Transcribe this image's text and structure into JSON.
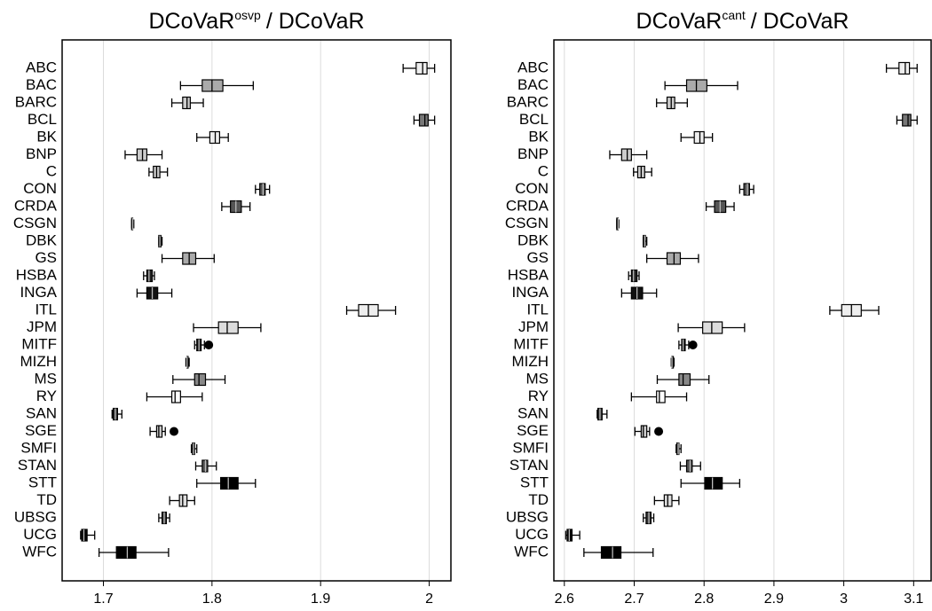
{
  "chart_data": [
    {
      "type": "boxplot",
      "title": "DCoVaR",
      "title_sup": "osvp",
      "title_suffix": "/ DCoVaR",
      "categories": [
        "ABC",
        "BAC",
        "BARC",
        "BCL",
        "BK",
        "BNP",
        "C",
        "CON",
        "CRDA",
        "CSGN",
        "DBK",
        "GS",
        "HSBA",
        "INGA",
        "ITL",
        "JPM",
        "MITF",
        "MIZH",
        "MS",
        "RY",
        "SAN",
        "SGE",
        "SMFI",
        "STAN",
        "STT",
        "TD",
        "UBSG",
        "UCG",
        "WFC"
      ],
      "values": [
        [
          1.976,
          1.988,
          1.994,
          1.998,
          2.005
        ],
        [
          1.771,
          1.791,
          1.8,
          1.81,
          1.838
        ],
        [
          1.763,
          1.773,
          1.777,
          1.78,
          1.792
        ],
        [
          1.986,
          1.991,
          1.996,
          1.999,
          2.005
        ],
        [
          1.786,
          1.798,
          1.803,
          1.807,
          1.815
        ],
        [
          1.72,
          1.731,
          1.736,
          1.74,
          1.754
        ],
        [
          1.742,
          1.746,
          1.749,
          1.752,
          1.759
        ],
        [
          1.84,
          1.844,
          1.847,
          1.849,
          1.853
        ],
        [
          1.809,
          1.817,
          1.822,
          1.827,
          1.835
        ],
        [
          1.726,
          1.726,
          1.727,
          1.727,
          1.728
        ],
        [
          1.751,
          1.751,
          1.752,
          1.753,
          1.754
        ],
        [
          1.754,
          1.773,
          1.779,
          1.785,
          1.802
        ],
        [
          1.737,
          1.74,
          1.742,
          1.745,
          1.747
        ],
        [
          1.731,
          1.74,
          1.745,
          1.75,
          1.763
        ],
        [
          1.924,
          1.935,
          1.944,
          1.953,
          1.969
        ],
        [
          1.783,
          1.806,
          1.814,
          1.824,
          1.845
        ],
        [
          1.784,
          1.786,
          1.788,
          1.79,
          1.793
        ],
        [
          1.776,
          1.777,
          1.777,
          1.778,
          1.779
        ],
        [
          1.764,
          1.784,
          1.788,
          1.794,
          1.812
        ],
        [
          1.74,
          1.763,
          1.766,
          1.771,
          1.791
        ],
        [
          1.708,
          1.709,
          1.711,
          1.713,
          1.717
        ],
        [
          1.743,
          1.749,
          1.751,
          1.754,
          1.757
        ],
        [
          1.781,
          1.782,
          1.783,
          1.784,
          1.786
        ],
        [
          1.785,
          1.791,
          1.794,
          1.796,
          1.804
        ],
        [
          1.786,
          1.808,
          1.815,
          1.824,
          1.84
        ],
        [
          1.761,
          1.77,
          1.773,
          1.777,
          1.784
        ],
        [
          1.751,
          1.754,
          1.756,
          1.758,
          1.761
        ],
        [
          1.679,
          1.68,
          1.682,
          1.685,
          1.692
        ],
        [
          1.696,
          1.712,
          1.722,
          1.73,
          1.76
        ]
      ],
      "outliers": [
        null,
        null,
        null,
        null,
        null,
        null,
        null,
        null,
        null,
        null,
        null,
        null,
        null,
        null,
        null,
        null,
        1.797,
        null,
        null,
        null,
        null,
        1.765,
        null,
        null,
        null,
        null,
        null,
        null,
        null
      ],
      "colors": [
        "#eeeeee",
        "#aaaaaa",
        "#cccccc",
        "#777777",
        "#eeeeee",
        "#cccccc",
        "#cccccc",
        "#555555",
        "#555555",
        "#222222",
        "#111111",
        "#aaaaaa",
        "#222222",
        "#111111",
        "#eeeeee",
        "#dddddd",
        "#111111",
        "#333333",
        "#888888",
        "#ffffff",
        "#333333",
        "#cccccc",
        "#555555",
        "#555555",
        "#000000",
        "#dddddd",
        "#333333",
        "#000000",
        "#000000"
      ],
      "xlim": [
        1.662,
        2.02
      ],
      "xticks": [
        1.7,
        1.8,
        1.9,
        2
      ],
      "grid": true
    },
    {
      "type": "boxplot",
      "title": "DCoVaR",
      "title_sup": "cant",
      "title_suffix": "/ DCoVaR",
      "categories": [
        "ABC",
        "BAC",
        "BARC",
        "BCL",
        "BK",
        "BNP",
        "C",
        "CON",
        "CRDA",
        "CSGN",
        "DBK",
        "GS",
        "HSBA",
        "INGA",
        "ITL",
        "JPM",
        "MITF",
        "MIZH",
        "MS",
        "RY",
        "SAN",
        "SGE",
        "SMFI",
        "STAN",
        "STT",
        "TD",
        "UBSG",
        "UCG",
        "WFC"
      ],
      "values": [
        [
          3.061,
          3.079,
          3.088,
          3.094,
          3.105
        ],
        [
          2.744,
          2.775,
          2.789,
          2.804,
          2.848
        ],
        [
          2.732,
          2.747,
          2.753,
          2.758,
          2.776
        ],
        [
          3.076,
          3.084,
          3.092,
          3.096,
          3.105
        ],
        [
          2.767,
          2.786,
          2.794,
          2.8,
          2.812
        ],
        [
          2.665,
          2.682,
          2.69,
          2.696,
          2.718
        ],
        [
          2.699,
          2.705,
          2.71,
          2.715,
          2.725
        ],
        [
          2.851,
          2.857,
          2.862,
          2.865,
          2.871
        ],
        [
          2.803,
          2.815,
          2.823,
          2.831,
          2.843
        ],
        [
          2.675,
          2.675,
          2.677,
          2.677,
          2.678
        ],
        [
          2.713,
          2.713,
          2.715,
          2.716,
          2.718
        ],
        [
          2.718,
          2.747,
          2.757,
          2.766,
          2.792
        ],
        [
          2.692,
          2.696,
          2.699,
          2.704,
          2.707
        ],
        [
          2.682,
          2.696,
          2.704,
          2.712,
          2.732
        ],
        [
          2.98,
          2.997,
          3.011,
          3.025,
          3.05
        ],
        [
          2.763,
          2.798,
          2.811,
          2.826,
          2.858
        ],
        [
          2.764,
          2.768,
          2.77,
          2.773,
          2.778
        ],
        [
          2.753,
          2.754,
          2.754,
          2.756,
          2.757
        ],
        [
          2.733,
          2.764,
          2.77,
          2.78,
          2.807
        ],
        [
          2.696,
          2.732,
          2.736,
          2.744,
          2.775
        ],
        [
          2.647,
          2.648,
          2.651,
          2.654,
          2.661
        ],
        [
          2.701,
          2.71,
          2.713,
          2.718,
          2.722
        ],
        [
          2.76,
          2.761,
          2.763,
          2.764,
          2.767
        ],
        [
          2.766,
          2.775,
          2.78,
          2.783,
          2.795
        ],
        [
          2.767,
          2.801,
          2.812,
          2.826,
          2.851
        ],
        [
          2.729,
          2.743,
          2.748,
          2.754,
          2.764
        ],
        [
          2.713,
          2.717,
          2.721,
          2.724,
          2.728
        ],
        [
          2.602,
          2.604,
          2.607,
          2.611,
          2.622
        ],
        [
          2.628,
          2.653,
          2.669,
          2.681,
          2.727
        ]
      ],
      "outliers": [
        null,
        null,
        null,
        null,
        null,
        null,
        null,
        null,
        null,
        null,
        null,
        null,
        null,
        null,
        null,
        null,
        2.784,
        null,
        null,
        null,
        null,
        2.735,
        null,
        null,
        null,
        null,
        null,
        null,
        null
      ],
      "colors": [
        "#eeeeee",
        "#aaaaaa",
        "#cccccc",
        "#777777",
        "#eeeeee",
        "#cccccc",
        "#cccccc",
        "#555555",
        "#555555",
        "#222222",
        "#111111",
        "#aaaaaa",
        "#222222",
        "#111111",
        "#eeeeee",
        "#dddddd",
        "#111111",
        "#333333",
        "#888888",
        "#ffffff",
        "#333333",
        "#cccccc",
        "#555555",
        "#555555",
        "#000000",
        "#dddddd",
        "#333333",
        "#000000",
        "#000000"
      ],
      "xlim": [
        2.585,
        3.125
      ],
      "xticks": [
        2.6,
        2.7,
        2.8,
        2.9,
        3,
        3.1
      ],
      "grid": true
    }
  ]
}
